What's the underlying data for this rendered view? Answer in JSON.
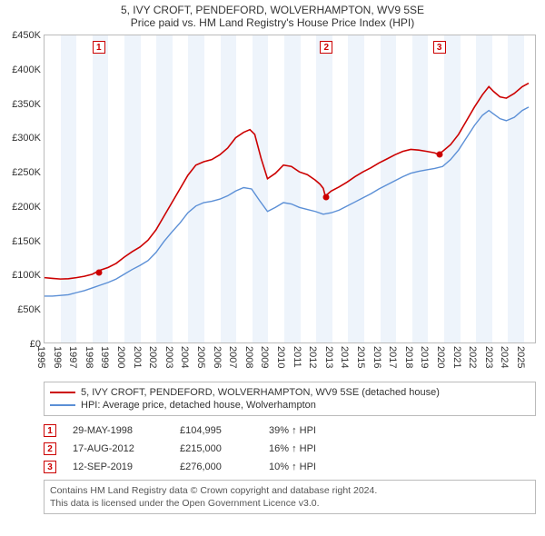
{
  "titles": {
    "line1": "5, IVY CROFT, PENDEFORD, WOLVERHAMPTON, WV9 5SE",
    "line2": "Price paid vs. HM Land Registry's House Price Index (HPI)"
  },
  "chart": {
    "type": "line",
    "background_color": "#ffffff",
    "band_color": "#eef4fb",
    "border_color": "#bbbbbb",
    "x": {
      "min": 1995,
      "max": 2025.8,
      "tick_step": 1,
      "ticks_start": 1995,
      "ticks_end": 2025
    },
    "y": {
      "min": 0,
      "max": 450000,
      "tick_step": 50000,
      "prefix": "£",
      "format": "K"
    },
    "series": [
      {
        "name": "red",
        "color": "#cc0000",
        "width": 1.6,
        "legend": "5, IVY CROFT, PENDEFORD, WOLVERHAMPTON, WV9 5SE (detached house)",
        "points": [
          [
            1995.0,
            95000
          ],
          [
            1995.5,
            94000
          ],
          [
            1996.0,
            93000
          ],
          [
            1996.5,
            93500
          ],
          [
            1997.0,
            95000
          ],
          [
            1997.5,
            97000
          ],
          [
            1998.0,
            100000
          ],
          [
            1998.4,
            104995
          ],
          [
            1998.5,
            106000
          ],
          [
            1999.0,
            110000
          ],
          [
            1999.5,
            116000
          ],
          [
            2000.0,
            125000
          ],
          [
            2000.5,
            133000
          ],
          [
            2001.0,
            140000
          ],
          [
            2001.5,
            150000
          ],
          [
            2002.0,
            165000
          ],
          [
            2002.5,
            185000
          ],
          [
            2003.0,
            205000
          ],
          [
            2003.5,
            225000
          ],
          [
            2004.0,
            245000
          ],
          [
            2004.5,
            260000
          ],
          [
            2005.0,
            265000
          ],
          [
            2005.5,
            268000
          ],
          [
            2006.0,
            275000
          ],
          [
            2006.5,
            285000
          ],
          [
            2007.0,
            300000
          ],
          [
            2007.5,
            308000
          ],
          [
            2007.9,
            312000
          ],
          [
            2008.2,
            305000
          ],
          [
            2008.6,
            270000
          ],
          [
            2009.0,
            240000
          ],
          [
            2009.5,
            248000
          ],
          [
            2010.0,
            260000
          ],
          [
            2010.5,
            258000
          ],
          [
            2011.0,
            250000
          ],
          [
            2011.5,
            246000
          ],
          [
            2012.0,
            238000
          ],
          [
            2012.3,
            232000
          ],
          [
            2012.5,
            226000
          ],
          [
            2012.63,
            215000
          ],
          [
            2012.7,
            216000
          ],
          [
            2013.0,
            222000
          ],
          [
            2013.5,
            228000
          ],
          [
            2014.0,
            235000
          ],
          [
            2014.5,
            243000
          ],
          [
            2015.0,
            250000
          ],
          [
            2015.5,
            256000
          ],
          [
            2016.0,
            263000
          ],
          [
            2016.5,
            269000
          ],
          [
            2017.0,
            275000
          ],
          [
            2017.5,
            280000
          ],
          [
            2018.0,
            283000
          ],
          [
            2018.5,
            282000
          ],
          [
            2019.0,
            280000
          ],
          [
            2019.5,
            278000
          ],
          [
            2019.7,
            276000
          ],
          [
            2020.0,
            280000
          ],
          [
            2020.5,
            290000
          ],
          [
            2021.0,
            305000
          ],
          [
            2021.5,
            325000
          ],
          [
            2022.0,
            345000
          ],
          [
            2022.5,
            363000
          ],
          [
            2022.9,
            375000
          ],
          [
            2023.2,
            368000
          ],
          [
            2023.6,
            360000
          ],
          [
            2024.0,
            358000
          ],
          [
            2024.5,
            365000
          ],
          [
            2025.0,
            375000
          ],
          [
            2025.4,
            380000
          ]
        ]
      },
      {
        "name": "blue",
        "color": "#5b8fd6",
        "width": 1.4,
        "legend": "HPI: Average price, detached house, Wolverhampton",
        "points": [
          [
            1995.0,
            68000
          ],
          [
            1995.5,
            68000
          ],
          [
            1996.0,
            69000
          ],
          [
            1996.5,
            70000
          ],
          [
            1997.0,
            73000
          ],
          [
            1997.5,
            76000
          ],
          [
            1998.0,
            80000
          ],
          [
            1998.5,
            84000
          ],
          [
            1999.0,
            88000
          ],
          [
            1999.5,
            93000
          ],
          [
            2000.0,
            100000
          ],
          [
            2000.5,
            107000
          ],
          [
            2001.0,
            113000
          ],
          [
            2001.5,
            120000
          ],
          [
            2002.0,
            132000
          ],
          [
            2002.5,
            148000
          ],
          [
            2003.0,
            162000
          ],
          [
            2003.5,
            175000
          ],
          [
            2004.0,
            190000
          ],
          [
            2004.5,
            200000
          ],
          [
            2005.0,
            205000
          ],
          [
            2005.5,
            207000
          ],
          [
            2006.0,
            210000
          ],
          [
            2006.5,
            215000
          ],
          [
            2007.0,
            222000
          ],
          [
            2007.5,
            227000
          ],
          [
            2008.0,
            225000
          ],
          [
            2008.5,
            208000
          ],
          [
            2009.0,
            192000
          ],
          [
            2009.5,
            198000
          ],
          [
            2010.0,
            205000
          ],
          [
            2010.5,
            203000
          ],
          [
            2011.0,
            198000
          ],
          [
            2011.5,
            195000
          ],
          [
            2012.0,
            192000
          ],
          [
            2012.5,
            188000
          ],
          [
            2013.0,
            190000
          ],
          [
            2013.5,
            194000
          ],
          [
            2014.0,
            200000
          ],
          [
            2014.5,
            206000
          ],
          [
            2015.0,
            212000
          ],
          [
            2015.5,
            218000
          ],
          [
            2016.0,
            225000
          ],
          [
            2016.5,
            231000
          ],
          [
            2017.0,
            237000
          ],
          [
            2017.5,
            243000
          ],
          [
            2018.0,
            248000
          ],
          [
            2018.5,
            251000
          ],
          [
            2019.0,
            253000
          ],
          [
            2019.5,
            255000
          ],
          [
            2020.0,
            258000
          ],
          [
            2020.5,
            268000
          ],
          [
            2021.0,
            282000
          ],
          [
            2021.5,
            300000
          ],
          [
            2022.0,
            318000
          ],
          [
            2022.5,
            333000
          ],
          [
            2022.9,
            340000
          ],
          [
            2023.2,
            335000
          ],
          [
            2023.6,
            328000
          ],
          [
            2024.0,
            325000
          ],
          [
            2024.5,
            330000
          ],
          [
            2025.0,
            340000
          ],
          [
            2025.4,
            345000
          ]
        ]
      }
    ],
    "markers": [
      {
        "n": "1",
        "x": 1998.4,
        "y": 104995
      },
      {
        "n": "2",
        "x": 2012.63,
        "y": 215000
      },
      {
        "n": "3",
        "x": 2019.7,
        "y": 276000
      }
    ]
  },
  "sales": [
    {
      "n": "1",
      "date": "29-MAY-1998",
      "price": "£104,995",
      "pct": "39% ↑ HPI"
    },
    {
      "n": "2",
      "date": "17-AUG-2012",
      "price": "£215,000",
      "pct": "16% ↑ HPI"
    },
    {
      "n": "3",
      "date": "12-SEP-2019",
      "price": "£276,000",
      "pct": "10% ↑ HPI"
    }
  ],
  "footer": {
    "line1": "Contains HM Land Registry data © Crown copyright and database right 2024.",
    "line2": "This data is licensed under the Open Government Licence v3.0."
  }
}
